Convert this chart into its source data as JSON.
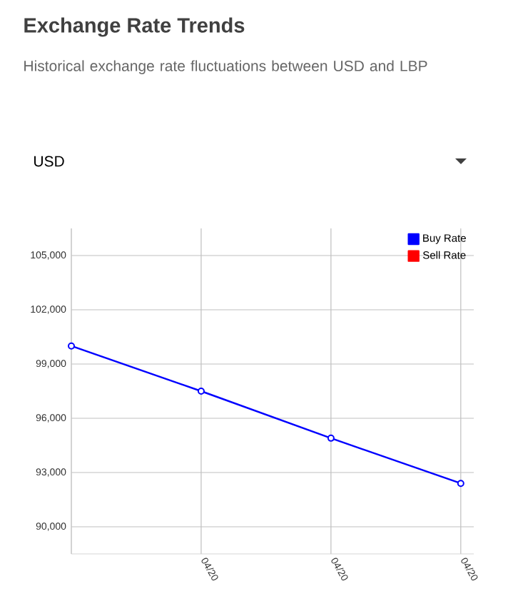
{
  "chart_data": {
    "type": "line",
    "title": "Exchange Rate Trends",
    "subtitle": "Historical exchange rate fluctuations between USD and LBP",
    "annotations": [
      "USD"
    ],
    "categories": [
      null,
      "04/20",
      "04/20",
      "04/20"
    ],
    "series": [
      {
        "name": "Buy Rate",
        "color": "#0000ff",
        "values": [
          100000,
          97500,
          94900,
          92400
        ]
      },
      {
        "name": "Sell Rate",
        "color": "#ff0000",
        "values": [
          null,
          null,
          null,
          null
        ]
      }
    ],
    "ylim": [
      88500,
      106500
    ],
    "yticks": [
      {
        "value": 90000,
        "label": "90,000"
      },
      {
        "value": 93000,
        "label": "93,000"
      },
      {
        "value": 96000,
        "label": "96,000"
      },
      {
        "value": 99000,
        "label": "99,000"
      },
      {
        "value": 102000,
        "label": "102,000"
      },
      {
        "value": 105000,
        "label": "105,000"
      }
    ],
    "grid": true,
    "legend": "top right",
    "marker": "circle",
    "line_style": "solid"
  }
}
